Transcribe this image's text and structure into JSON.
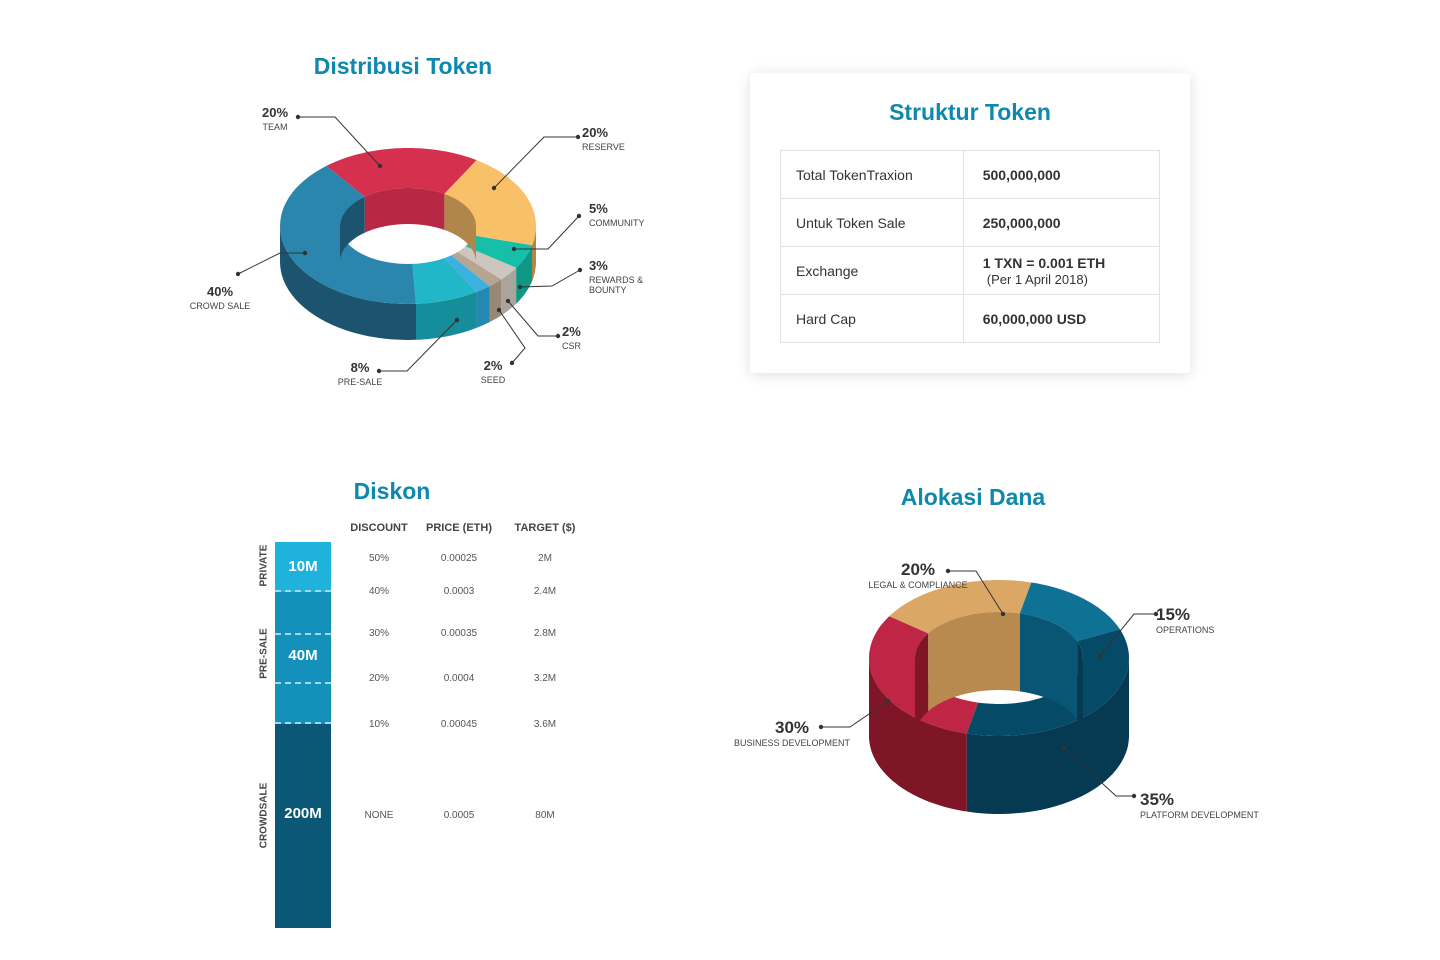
{
  "titles": {
    "distribution": "Distribusi Token",
    "structure": "Struktur Token",
    "discount": "Diskon",
    "allocation": "Alokasi Dana"
  },
  "chart_data": [
    {
      "type": "pie",
      "title": "Distribusi Token",
      "categories": [
        "TEAM",
        "RESERVE",
        "COMMUNITY",
        "REWARDS & BOUNTY",
        "CSR",
        "SEED",
        "PRE-SALE",
        "CROWD SALE"
      ],
      "values": [
        20,
        20,
        5,
        3,
        2,
        2,
        8,
        40
      ],
      "labels": [
        "20%",
        "20%",
        "5%",
        "3%",
        "2%",
        "2%",
        "8%",
        "40%"
      ],
      "colors": [
        "#d6304f",
        "#f9c06a",
        "#18bfa8",
        "#ccc6bf",
        "#b7a593",
        "#3eb0e0",
        "#22b7c8",
        "#2a86ad"
      ],
      "side_colors": [
        "#b82743",
        "#b0864a",
        "#0f9885",
        "#aaa49c",
        "#9a8877",
        "#2389b3",
        "#168d9b",
        "#1c5470"
      ]
    },
    {
      "type": "pie",
      "title": "Alokasi Dana",
      "categories": [
        "LEGAL & COMPLIANCE",
        "OPERATIONS",
        "PLATFORM DEVELOPMENT",
        "BUSINESS DEVELOPMENT"
      ],
      "values": [
        20,
        15,
        35,
        30
      ],
      "labels": [
        "20%",
        "15%",
        "35%",
        "30%"
      ],
      "colors": [
        "#dba764",
        "#0f7194",
        "#054b67",
        "#bf2544"
      ],
      "side_colors": [
        "#b88a50",
        "#095674",
        "#053a52",
        "#7e1628"
      ]
    },
    {
      "type": "table",
      "title": "Diskon",
      "columns": [
        "DISCOUNT",
        "PRICE (ETH)",
        "TARGET ($)"
      ],
      "rows": [
        [
          "50%",
          "0.00025",
          "2M"
        ],
        [
          "40%",
          "0.0003",
          "2.4M"
        ],
        [
          "30%",
          "0.00035",
          "2.8M"
        ],
        [
          "20%",
          "0.0004",
          "3.2M"
        ],
        [
          "10%",
          "0.00045",
          "3.6M"
        ],
        [
          "NONE",
          "0.0005",
          "80M"
        ]
      ],
      "phases": [
        {
          "name": "PRIVATE",
          "amount": "10M"
        },
        {
          "name": "PRE-SALE",
          "amount": "40M"
        },
        {
          "name": "CROWDSALE",
          "amount": "200M"
        }
      ]
    }
  ],
  "structure": {
    "rows": [
      {
        "label": "Total TokenTraxion",
        "value": "500,000,000",
        "note": ""
      },
      {
        "label": "Untuk Token Sale",
        "value": "250,000,000",
        "note": ""
      },
      {
        "label": "Exchange",
        "value": "1 TXN = 0.001 ETH",
        "note": "(Per 1 April 2018)"
      },
      {
        "label": "Hard Cap",
        "value": "60,000,000 USD",
        "note": ""
      }
    ]
  }
}
